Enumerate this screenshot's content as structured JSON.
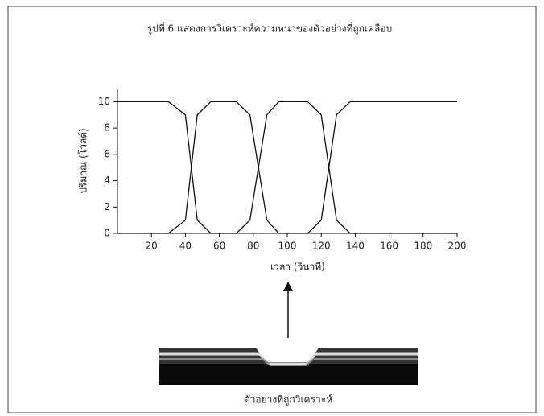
{
  "chart_data": {
    "type": "line",
    "title": "รูปที่ 6 แสดงการวิเคราะห์ความหนาของตัวอย่างที่ถูกเคลือบ",
    "x_label": "เวลา (วินาที)",
    "y_label": "ปริมาณ (โวลต์)",
    "caption": "ตัวอย่างที่ถูกวิเคราะห์",
    "x": [
      0,
      30,
      40,
      47,
      55,
      70,
      78,
      88,
      95,
      112,
      120,
      129,
      137,
      200
    ],
    "series": [
      {
        "color": "#111111",
        "values": [
          10,
          10,
          9,
          1,
          0,
          0,
          1,
          9,
          10,
          10,
          9,
          1,
          0,
          0
        ]
      },
      {
        "color": "#111111",
        "values": [
          0,
          0,
          1,
          9,
          10,
          10,
          9,
          1,
          0,
          0,
          1,
          9,
          10,
          10
        ]
      }
    ],
    "xlim": [
      0,
      200
    ],
    "xticks": [
      20,
      40,
      60,
      80,
      100,
      120,
      140,
      160,
      180,
      200
    ],
    "ylim": [
      0,
      11
    ],
    "yticks": [
      0,
      2,
      4,
      6,
      8,
      10
    ]
  }
}
